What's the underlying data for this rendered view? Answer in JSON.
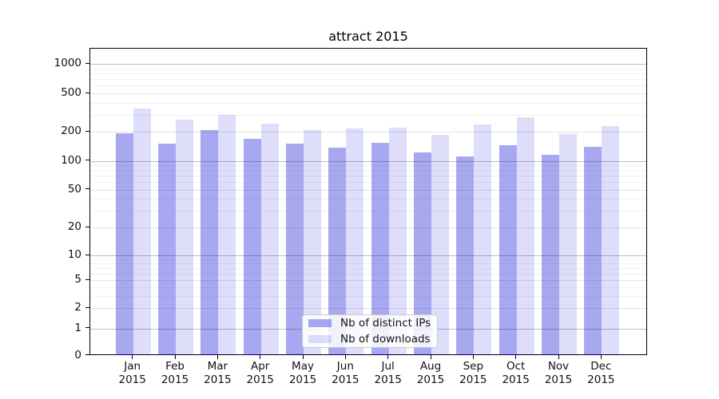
{
  "chart_data": {
    "type": "bar",
    "title": "attract 2015",
    "year_label": "2015",
    "categories": [
      "Jan",
      "Feb",
      "Mar",
      "Apr",
      "May",
      "Jun",
      "Jul",
      "Aug",
      "Sep",
      "Oct",
      "Nov",
      "Dec"
    ],
    "series": [
      {
        "name": "Nb of distinct IPs",
        "color": "#a9a9f1",
        "fill": "rgba(0,0,215,0.34)",
        "values": [
          192,
          151,
          209,
          170,
          150,
          137,
          152,
          123,
          112,
          145,
          115,
          139
        ]
      },
      {
        "name": "Nb of downloads",
        "color": "#dedef8",
        "fill": "rgba(0,0,215,0.13)",
        "values": [
          348,
          268,
          298,
          240,
          208,
          215,
          219,
          184,
          236,
          280,
          189,
          227
        ]
      }
    ],
    "xlabel": "",
    "ylabel": "",
    "yscale": "log-with-zero",
    "yticks": [
      1000,
      500,
      200,
      100,
      50,
      20,
      10,
      5,
      2,
      1,
      0
    ],
    "ylim": [
      0,
      1400
    ],
    "grid": true,
    "legend_position": "bottom-center"
  },
  "colors": {
    "major_grid_decade": "#bdbdbd",
    "major_grid_sub": "#e4e4e4",
    "minor_grid": "#f2f2f2",
    "axis": "#000000",
    "text": "#111111"
  }
}
